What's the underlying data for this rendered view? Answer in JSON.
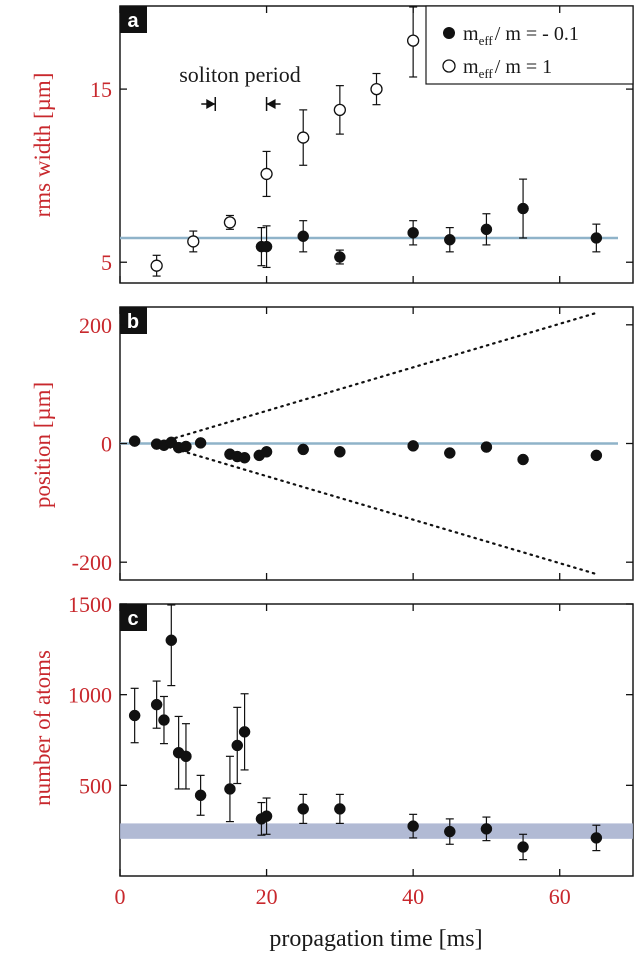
{
  "chart_data": [
    {
      "type": "scatter",
      "panel_label": "a",
      "ylabel": "rms width [µm]",
      "xlim": [
        0,
        70
      ],
      "ylim": [
        3.8,
        19.8
      ],
      "yticks": [
        5,
        15
      ],
      "xticks": [
        0,
        20,
        40,
        60
      ],
      "annotation": "soliton period",
      "annotation_markers_x": [
        13,
        20
      ],
      "reference_line": {
        "y": 6.4,
        "color": "#8fb3c9"
      },
      "legend": {
        "placement": "top-right",
        "entries": [
          {
            "marker": "filled-circle",
            "prefix": "m",
            "sub": "eff",
            "rest": "/ m = - 0.1"
          },
          {
            "marker": "open-circle",
            "prefix": "m",
            "sub": "eff",
            "rest": "/ m = 1"
          }
        ]
      },
      "series": [
        {
          "name": "m_eff/m = -0.1",
          "marker": "filled-circle",
          "points": [
            {
              "x": 19.3,
              "y": 5.9,
              "err": 1.1
            },
            {
              "x": 20.0,
              "y": 5.9,
              "err": 1.2
            },
            {
              "x": 25,
              "y": 6.5,
              "err": 0.9
            },
            {
              "x": 30,
              "y": 5.3,
              "err": 0.4
            },
            {
              "x": 40,
              "y": 6.7,
              "err": 0.7
            },
            {
              "x": 45,
              "y": 6.3,
              "err": 0.7
            },
            {
              "x": 50,
              "y": 6.9,
              "err": 0.9
            },
            {
              "x": 55,
              "y": 8.1,
              "err": 1.7
            },
            {
              "x": 65,
              "y": 6.4,
              "err": 0.8
            }
          ]
        },
        {
          "name": "m_eff/m = 1",
          "marker": "open-circle",
          "points": [
            {
              "x": 5,
              "y": 4.8,
              "err": 0.6
            },
            {
              "x": 10,
              "y": 6.2,
              "err": 0.6
            },
            {
              "x": 15,
              "y": 7.3,
              "err": 0.4
            },
            {
              "x": 20,
              "y": 10.1,
              "err": 1.3
            },
            {
              "x": 25,
              "y": 12.2,
              "err": 1.6
            },
            {
              "x": 30,
              "y": 13.8,
              "err": 1.4
            },
            {
              "x": 35,
              "y": 15.0,
              "err": 0.9
            },
            {
              "x": 40,
              "y": 17.8,
              "err": 2.1
            }
          ]
        }
      ]
    },
    {
      "type": "scatter",
      "panel_label": "b",
      "ylabel": "position [µm]",
      "xlim": [
        0,
        70
      ],
      "ylim": [
        -230,
        230
      ],
      "yticks": [
        -200,
        0,
        200
      ],
      "xticks": [
        0,
        20,
        40,
        60
      ],
      "reference_line": {
        "y": 0,
        "color": "#8fb3c9"
      },
      "dotted_lines": [
        {
          "from": [
            5,
            0
          ],
          "to": [
            65,
            220
          ]
        },
        {
          "from": [
            5,
            0
          ],
          "to": [
            65,
            -220
          ]
        }
      ],
      "series": [
        {
          "name": "m_eff/m = -0.1",
          "marker": "filled-circle",
          "points": [
            {
              "x": 2,
              "y": 4
            },
            {
              "x": 5,
              "y": -1
            },
            {
              "x": 6,
              "y": -3
            },
            {
              "x": 7,
              "y": 2
            },
            {
              "x": 8,
              "y": -7
            },
            {
              "x": 9,
              "y": -5
            },
            {
              "x": 11,
              "y": 1
            },
            {
              "x": 15,
              "y": -18
            },
            {
              "x": 16,
              "y": -22
            },
            {
              "x": 17,
              "y": -24
            },
            {
              "x": 19,
              "y": -20
            },
            {
              "x": 20,
              "y": -14
            },
            {
              "x": 25,
              "y": -10
            },
            {
              "x": 30,
              "y": -14
            },
            {
              "x": 40,
              "y": -4
            },
            {
              "x": 45,
              "y": -16
            },
            {
              "x": 50,
              "y": -6
            },
            {
              "x": 55,
              "y": -27
            },
            {
              "x": 65,
              "y": -20
            }
          ]
        }
      ]
    },
    {
      "type": "scatter",
      "panel_label": "c",
      "ylabel": "number of atoms",
      "xlabel": "propagation time [ms]",
      "xlim": [
        0,
        70
      ],
      "ylim": [
        0,
        1500
      ],
      "yticks": [
        500,
        1000,
        1500
      ],
      "xticks": [
        0,
        20,
        40,
        60
      ],
      "reference_band": {
        "y0": 205,
        "y1": 290,
        "color": "#a9b3cf"
      },
      "series": [
        {
          "name": "m_eff/m = -0.1",
          "marker": "filled-circle",
          "points": [
            {
              "x": 2,
              "y": 885,
              "err": 150
            },
            {
              "x": 5,
              "y": 945,
              "err": 130
            },
            {
              "x": 6,
              "y": 860,
              "err": 130
            },
            {
              "x": 7,
              "y": 1300,
              "err": 250
            },
            {
              "x": 8,
              "y": 680,
              "err": 200
            },
            {
              "x": 9,
              "y": 660,
              "err": 180
            },
            {
              "x": 11,
              "y": 445,
              "err": 110
            },
            {
              "x": 15,
              "y": 480,
              "err": 180
            },
            {
              "x": 16,
              "y": 720,
              "err": 210
            },
            {
              "x": 17,
              "y": 795,
              "err": 210
            },
            {
              "x": 19.3,
              "y": 315,
              "err": 90
            },
            {
              "x": 20,
              "y": 330,
              "err": 100
            },
            {
              "x": 25,
              "y": 370,
              "err": 80
            },
            {
              "x": 30,
              "y": 370,
              "err": 80
            },
            {
              "x": 40,
              "y": 275,
              "err": 65
            },
            {
              "x": 45,
              "y": 245,
              "err": 70
            },
            {
              "x": 50,
              "y": 260,
              "err": 65
            },
            {
              "x": 55,
              "y": 160,
              "err": 70
            },
            {
              "x": 65,
              "y": 210,
              "err": 70
            }
          ]
        }
      ]
    }
  ]
}
